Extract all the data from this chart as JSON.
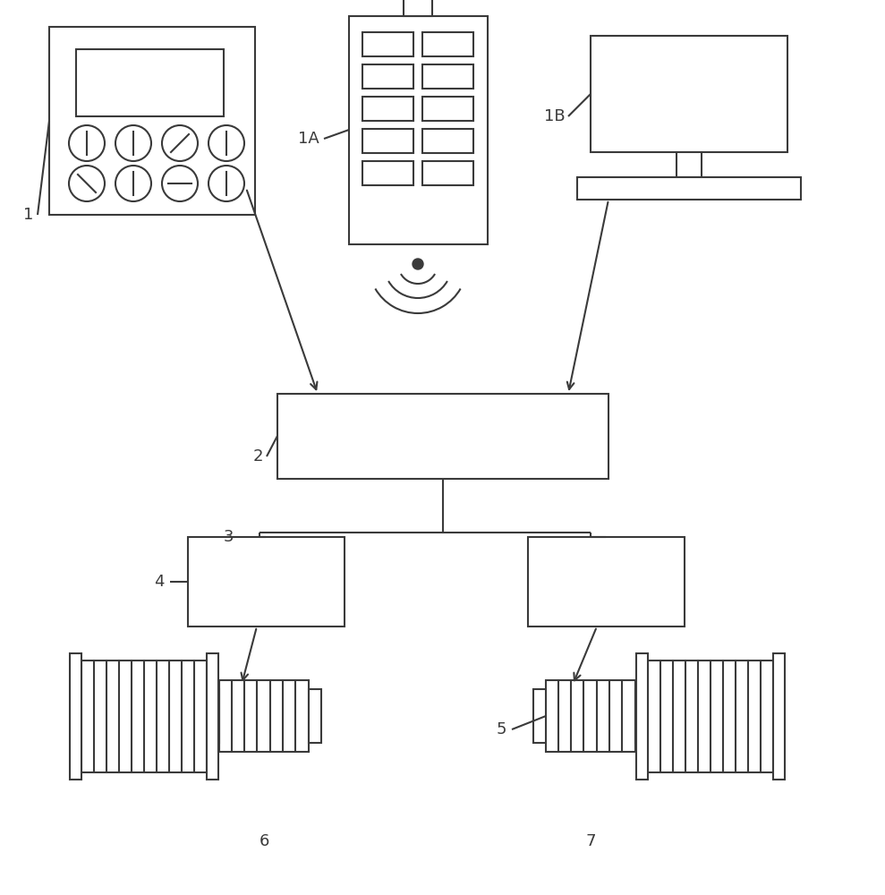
{
  "bg_color": "#ffffff",
  "line_color": "#3a3a3a",
  "lw": 1.5,
  "fig_w": 9.89,
  "fig_h": 10.0,
  "label_fs": 13
}
